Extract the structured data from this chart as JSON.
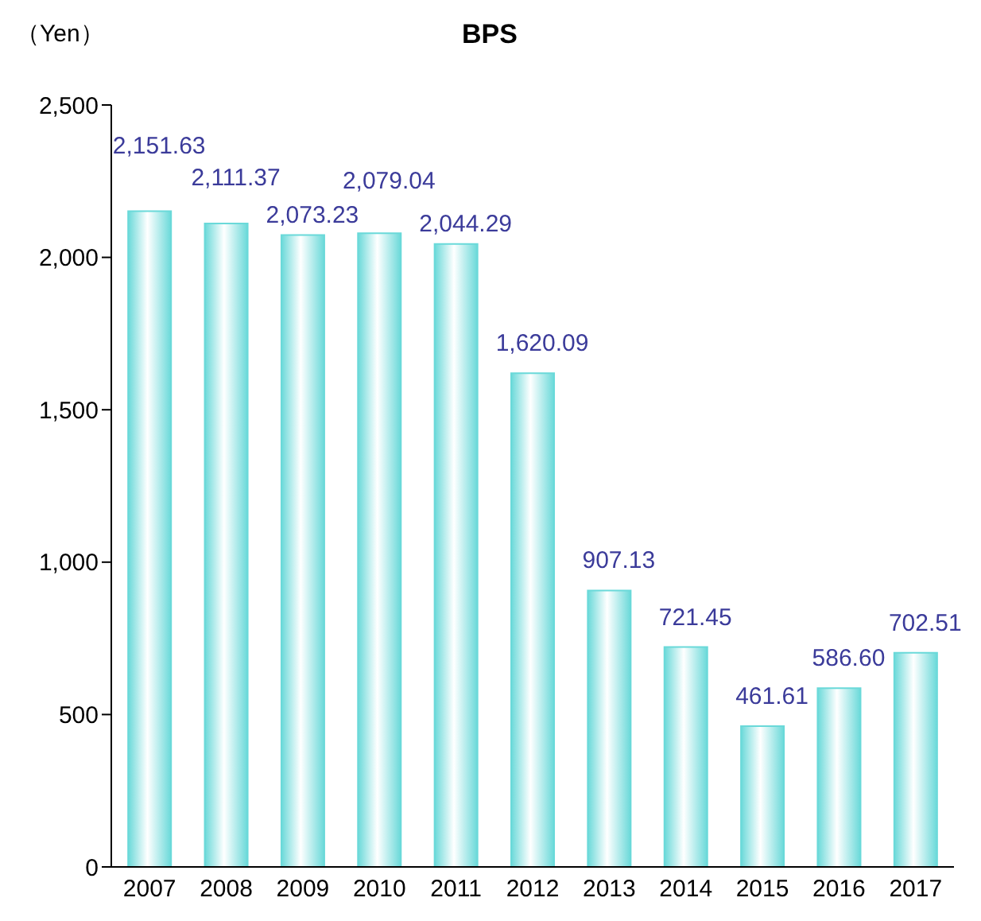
{
  "chart_data": {
    "type": "bar",
    "title": "BPS",
    "ylabel": "（Yen）",
    "categories": [
      "2007",
      "2008",
      "2009",
      "2010",
      "2011",
      "2012",
      "2013",
      "2014",
      "2015",
      "2016",
      "2017"
    ],
    "values": [
      2151.63,
      2111.37,
      2073.23,
      2079.04,
      2044.29,
      1620.09,
      907.13,
      721.45,
      461.61,
      586.6,
      702.51
    ],
    "value_labels": [
      "2,151.63",
      "2,111.37",
      "2,073.23",
      "2,079.04",
      "2,044.29",
      "1,620.09",
      "907.13",
      "721.45",
      "461.61",
      "586.60",
      "702.51"
    ],
    "color": "#6ad9d9",
    "ylim": [
      0,
      2500
    ],
    "yticks": [
      {
        "value": 0,
        "label": "0"
      },
      {
        "value": 500,
        "label": "500"
      },
      {
        "value": 1000,
        "label": "1,000"
      },
      {
        "value": 1500,
        "label": "1,500"
      },
      {
        "value": 2000,
        "label": "2,000"
      },
      {
        "value": 2500,
        "label": "2,500"
      }
    ],
    "grid": false,
    "legend": false
  }
}
